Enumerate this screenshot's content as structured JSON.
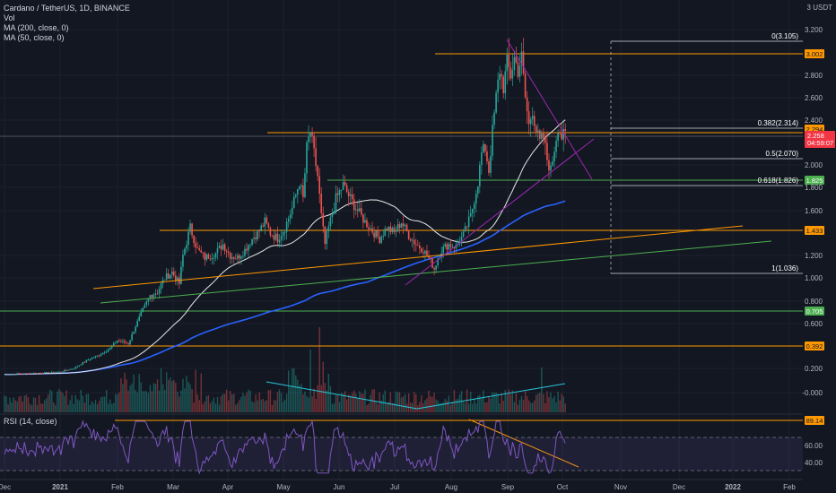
{
  "header": {
    "title": "Cardano / TetherUS, 1D, BINANCE",
    "vol_label": "Vol",
    "ma200_label": "MA (200, close, 0)",
    "ma50_label": "MA (50, close, 0)",
    "rsi_label": "RSI (14, close)",
    "currency": "3 USDT"
  },
  "colors": {
    "background": "#131722",
    "candle_up": "#26a69a",
    "candle_down": "#ef5350",
    "ma50": "#e8e8e8",
    "ma200": "#2962ff",
    "horizontal_level": "#ff9800",
    "support_green": "#4caf50",
    "trend_purple": "#9c27b0",
    "rsi_line": "#7e57c2",
    "price_tag": "#f23645",
    "level_tag": "#ff9800",
    "green_tag": "#4caf50"
  },
  "chart_data": {
    "type": "candlestick",
    "x_tick_labels": [
      "Dec",
      "2021",
      "Feb",
      "Mar",
      "Apr",
      "May",
      "Jun",
      "Jul",
      "Aug",
      "Sep",
      "Oct",
      "Nov",
      "Dec",
      "2022",
      "Feb"
    ],
    "y_tick_labels": [
      "3.200",
      "2.800",
      "2.600",
      "2.400",
      "2.000",
      "1.800",
      "1.600",
      "1.200",
      "1.000",
      "0.800",
      "0.600",
      "0.400",
      "0.200",
      "-0.000"
    ],
    "rsi_tick_labels": [
      "60.00",
      "40.00"
    ],
    "price_scale": "log",
    "current_price": "2.258",
    "countdown": "04:59:07",
    "level_tags": [
      {
        "label": "3.002",
        "color": "#ff9800",
        "text_color": "#131722"
      },
      {
        "label": "2.294",
        "color": "#ff9800",
        "text_color": "#131722"
      },
      {
        "label": "1.825",
        "color": "#4caf50",
        "text_color": "#ffffff"
      },
      {
        "label": "1.433",
        "color": "#ff9800",
        "text_color": "#131722"
      },
      {
        "label": "0.705",
        "color": "#4caf50",
        "text_color": "#ffffff"
      },
      {
        "label": "0.392",
        "color": "#ff9800",
        "text_color": "#131722"
      }
    ],
    "rsi_tag": "89.14",
    "fib_levels": [
      {
        "label": "0(3.105)",
        "value": 3.105
      },
      {
        "label": "0.382(2.314)",
        "value": 2.314
      },
      {
        "label": "0.5(2.070)",
        "value": 2.07
      },
      {
        "label": "0.618(1.826)",
        "value": 1.826
      },
      {
        "label": "1(1.036)",
        "value": 1.036
      }
    ]
  }
}
